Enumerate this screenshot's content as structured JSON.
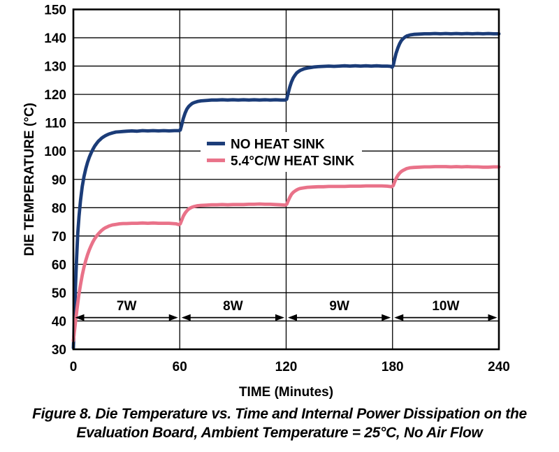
{
  "figure": {
    "caption_line1": "Figure 8. Die Temperature vs. Time and Internal Power Dissipation on the",
    "caption_line2": "Evaluation Board, Ambient Temperature = 25°C, No Air Flow"
  },
  "chart_data": {
    "type": "line",
    "title": "",
    "xlabel": "TIME (Minutes)",
    "ylabel": "DIE TEMPERATURE (°C)",
    "xlim": [
      0,
      240
    ],
    "ylim": [
      30,
      150
    ],
    "x_ticks": [
      0,
      60,
      120,
      180,
      240
    ],
    "y_ticks": [
      30,
      40,
      50,
      60,
      70,
      80,
      90,
      100,
      110,
      120,
      130,
      140,
      150
    ],
    "grid": true,
    "legend_position": "upper-center-left",
    "colors": {
      "no_heat_sink": "#1b3c78",
      "heat_sink": "#e97289",
      "grid": "#000000",
      "text": "#000000",
      "background": "#ffffff"
    },
    "legend": [
      {
        "key": "no_heat_sink",
        "label": "NO HEAT SINK"
      },
      {
        "key": "heat_sink",
        "label": "5.4°C/W HEAT SINK"
      }
    ],
    "power_segments": [
      {
        "label": "7W",
        "from_min": 0,
        "to_min": 60
      },
      {
        "label": "8W",
        "from_min": 60,
        "to_min": 120
      },
      {
        "label": "9W",
        "from_min": 120,
        "to_min": 180
      },
      {
        "label": "10W",
        "from_min": 180,
        "to_min": 240
      }
    ],
    "power_annotation": {
      "arrow_temp_c": 41.2,
      "label_temp_c": 45.6
    },
    "series": [
      {
        "key": "no_heat_sink",
        "name": "NO HEAT SINK",
        "plateaus_c": [
          107,
          118,
          130,
          141.5
        ],
        "points": [
          [
            0,
            30.5
          ],
          [
            0.7,
            42
          ],
          [
            1.2,
            52
          ],
          [
            1.8,
            62
          ],
          [
            2.5,
            71
          ],
          [
            3.2,
            77
          ],
          [
            4,
            82.5
          ],
          [
            5,
            87.5
          ],
          [
            6,
            91
          ],
          [
            7,
            93.8
          ],
          [
            8,
            96
          ],
          [
            9,
            97.8
          ],
          [
            10,
            99.3
          ],
          [
            11,
            100.6
          ],
          [
            12,
            101.7
          ],
          [
            13,
            102.6
          ],
          [
            14,
            103.4
          ],
          [
            15,
            104
          ],
          [
            16,
            104.6
          ],
          [
            17,
            105
          ],
          [
            18,
            105.4
          ],
          [
            19,
            105.7
          ],
          [
            20,
            106
          ],
          [
            22,
            106.4
          ],
          [
            24,
            106.7
          ],
          [
            26,
            106.8
          ],
          [
            28,
            106.9
          ],
          [
            30,
            107
          ],
          [
            33,
            107.1
          ],
          [
            36,
            107
          ],
          [
            39,
            107.2
          ],
          [
            42,
            107.1
          ],
          [
            45,
            107.2
          ],
          [
            48,
            107.1
          ],
          [
            51,
            107.2
          ],
          [
            54,
            107.1
          ],
          [
            57,
            107.2
          ],
          [
            59.5,
            107.2
          ],
          [
            60.3,
            107.4
          ],
          [
            61,
            109
          ],
          [
            62,
            111.5
          ],
          [
            63,
            113.4
          ],
          [
            64,
            114.8
          ],
          [
            65,
            115.7
          ],
          [
            66,
            116.3
          ],
          [
            67,
            116.8
          ],
          [
            68,
            117.1
          ],
          [
            70,
            117.5
          ],
          [
            72,
            117.7
          ],
          [
            74,
            117.8
          ],
          [
            76,
            117.9
          ],
          [
            78,
            118
          ],
          [
            81,
            118
          ],
          [
            84,
            118.1
          ],
          [
            87,
            118
          ],
          [
            90,
            118.1
          ],
          [
            93,
            118
          ],
          [
            96,
            118.1
          ],
          [
            99,
            118
          ],
          [
            102,
            118.1
          ],
          [
            105,
            118
          ],
          [
            108,
            118.1
          ],
          [
            111,
            118
          ],
          [
            114,
            118.1
          ],
          [
            117,
            118
          ],
          [
            119.5,
            118
          ],
          [
            120.3,
            118.3
          ],
          [
            121,
            120
          ],
          [
            122,
            122.5
          ],
          [
            123,
            124.4
          ],
          [
            124,
            125.8
          ],
          [
            125,
            126.8
          ],
          [
            126,
            127.6
          ],
          [
            127,
            128.1
          ],
          [
            128,
            128.5
          ],
          [
            130,
            129
          ],
          [
            132,
            129.3
          ],
          [
            134,
            129.5
          ],
          [
            136,
            129.7
          ],
          [
            138,
            129.8
          ],
          [
            141,
            129.9
          ],
          [
            144,
            130
          ],
          [
            147,
            129.9
          ],
          [
            150,
            130
          ],
          [
            153,
            130.1
          ],
          [
            156,
            130
          ],
          [
            159,
            130.1
          ],
          [
            162,
            130
          ],
          [
            165,
            130.1
          ],
          [
            168,
            130
          ],
          [
            171,
            130.1
          ],
          [
            174,
            130
          ],
          [
            177,
            130
          ],
          [
            179,
            129.9
          ],
          [
            179.8,
            129.6
          ],
          [
            180.4,
            130.2
          ],
          [
            181,
            132
          ],
          [
            182,
            134.5
          ],
          [
            183,
            136.4
          ],
          [
            184,
            137.9
          ],
          [
            185,
            139
          ],
          [
            186,
            139.7
          ],
          [
            187,
            140.2
          ],
          [
            188,
            140.6
          ],
          [
            190,
            141
          ],
          [
            192,
            141.2
          ],
          [
            195,
            141.3
          ],
          [
            198,
            141.4
          ],
          [
            201,
            141.4
          ],
          [
            204,
            141.5
          ],
          [
            207,
            141.4
          ],
          [
            210,
            141.5
          ],
          [
            213,
            141.4
          ],
          [
            216,
            141.5
          ],
          [
            219,
            141.4
          ],
          [
            222,
            141.5
          ],
          [
            225,
            141.4
          ],
          [
            228,
            141.5
          ],
          [
            231,
            141.4
          ],
          [
            234,
            141.5
          ],
          [
            237,
            141.4
          ],
          [
            240,
            141.4
          ]
        ]
      },
      {
        "key": "heat_sink",
        "name": "5.4°C/W HEAT SINK",
        "plateaus_c": [
          74.5,
          81,
          87.5,
          94.4
        ],
        "points": [
          [
            0,
            33
          ],
          [
            1,
            38.5
          ],
          [
            2,
            44
          ],
          [
            3,
            48.8
          ],
          [
            4,
            52.8
          ],
          [
            5,
            56.2
          ],
          [
            6,
            59
          ],
          [
            7,
            61.4
          ],
          [
            8,
            63.4
          ],
          [
            9,
            65.1
          ],
          [
            10,
            66.6
          ],
          [
            11,
            67.9
          ],
          [
            12,
            69
          ],
          [
            13,
            69.9
          ],
          [
            14,
            70.7
          ],
          [
            15,
            71.4
          ],
          [
            16,
            72
          ],
          [
            17,
            72.5
          ],
          [
            18,
            72.9
          ],
          [
            19,
            73.2
          ],
          [
            20,
            73.5
          ],
          [
            22,
            73.9
          ],
          [
            24,
            74.1
          ],
          [
            26,
            74.3
          ],
          [
            28,
            74.4
          ],
          [
            30,
            74.4
          ],
          [
            33,
            74.5
          ],
          [
            36,
            74.5
          ],
          [
            39,
            74.6
          ],
          [
            42,
            74.5
          ],
          [
            45,
            74.6
          ],
          [
            48,
            74.5
          ],
          [
            51,
            74.5
          ],
          [
            54,
            74.5
          ],
          [
            56,
            74.4
          ],
          [
            58,
            74.3
          ],
          [
            59.5,
            74
          ],
          [
            60.3,
            74.3
          ],
          [
            61,
            75.4
          ],
          [
            62,
            77
          ],
          [
            63,
            78.1
          ],
          [
            64,
            78.9
          ],
          [
            65,
            79.5
          ],
          [
            66,
            79.9
          ],
          [
            67,
            80.2
          ],
          [
            68,
            80.4
          ],
          [
            70,
            80.7
          ],
          [
            72,
            80.8
          ],
          [
            75,
            80.9
          ],
          [
            78,
            81
          ],
          [
            81,
            81
          ],
          [
            84,
            81.1
          ],
          [
            87,
            81
          ],
          [
            90,
            81.1
          ],
          [
            93,
            81.1
          ],
          [
            96,
            81.1
          ],
          [
            99,
            81.2
          ],
          [
            102,
            81.2
          ],
          [
            105,
            81.3
          ],
          [
            108,
            81.2
          ],
          [
            111,
            81.2
          ],
          [
            114,
            81.1
          ],
          [
            117,
            81
          ],
          [
            119.5,
            80.9
          ],
          [
            120.3,
            81.2
          ],
          [
            121,
            82.2
          ],
          [
            122,
            83.6
          ],
          [
            123,
            84.7
          ],
          [
            124,
            85.4
          ],
          [
            125,
            85.9
          ],
          [
            126,
            86.3
          ],
          [
            127,
            86.6
          ],
          [
            128,
            86.8
          ],
          [
            130,
            87
          ],
          [
            132,
            87.2
          ],
          [
            135,
            87.3
          ],
          [
            138,
            87.4
          ],
          [
            141,
            87.4
          ],
          [
            144,
            87.5
          ],
          [
            147,
            87.5
          ],
          [
            150,
            87.5
          ],
          [
            153,
            87.5
          ],
          [
            156,
            87.6
          ],
          [
            159,
            87.6
          ],
          [
            162,
            87.6
          ],
          [
            165,
            87.7
          ],
          [
            168,
            87.7
          ],
          [
            171,
            87.7
          ],
          [
            174,
            87.7
          ],
          [
            177,
            87.6
          ],
          [
            179.5,
            87.4
          ],
          [
            180.4,
            87.8
          ],
          [
            181,
            88.8
          ],
          [
            182,
            90.3
          ],
          [
            183,
            91.4
          ],
          [
            184,
            92.2
          ],
          [
            185,
            92.8
          ],
          [
            186,
            93.2
          ],
          [
            187,
            93.5
          ],
          [
            188,
            93.8
          ],
          [
            190,
            94.1
          ],
          [
            192,
            94.2
          ],
          [
            195,
            94.3
          ],
          [
            198,
            94.4
          ],
          [
            201,
            94.4
          ],
          [
            204,
            94.5
          ],
          [
            207,
            94.5
          ],
          [
            210,
            94.5
          ],
          [
            213,
            94.4
          ],
          [
            216,
            94.5
          ],
          [
            219,
            94.4
          ],
          [
            222,
            94.5
          ],
          [
            225,
            94.4
          ],
          [
            228,
            94.4
          ],
          [
            231,
            94.3
          ],
          [
            234,
            94.3
          ],
          [
            237,
            94.4
          ],
          [
            240,
            94.4
          ]
        ]
      }
    ]
  }
}
